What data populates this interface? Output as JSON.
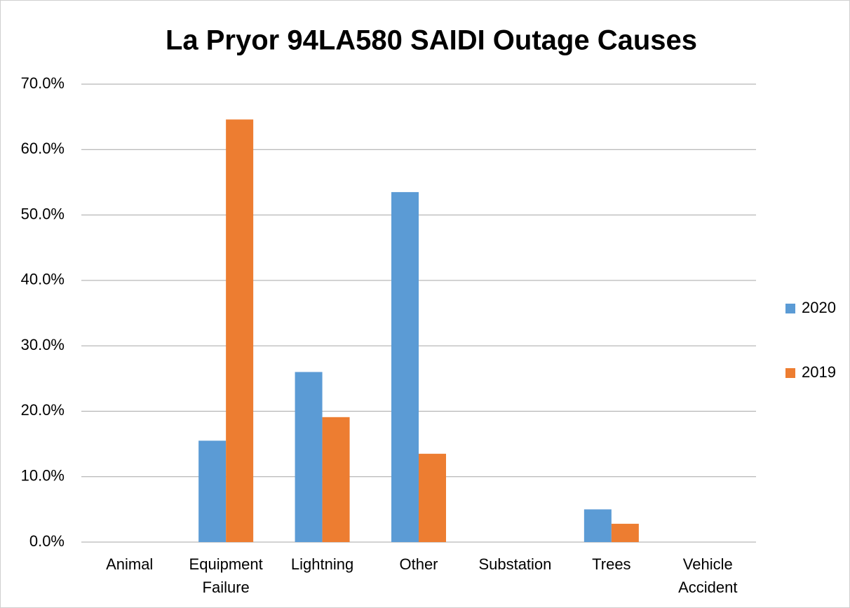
{
  "chart_data": {
    "type": "bar",
    "title": "La Pryor 94LA580 SAIDI Outage Causes",
    "categories": [
      "Animal",
      "Equipment Failure",
      "Lightning",
      "Other",
      "Substation",
      "Trees",
      "Vehicle Accident"
    ],
    "series": [
      {
        "name": "2020",
        "color": "#5b9bd5",
        "values": [
          0,
          15.5,
          26.0,
          53.5,
          0,
          5.0,
          0
        ]
      },
      {
        "name": "2019",
        "color": "#ed7d31",
        "values": [
          0,
          64.6,
          19.1,
          13.5,
          0,
          2.8,
          0
        ]
      }
    ],
    "ylim": [
      0,
      70
    ],
    "yticks": [
      {
        "value": 0,
        "label": "0.0%"
      },
      {
        "value": 10,
        "label": "10.0%"
      },
      {
        "value": 20,
        "label": "20.0%"
      },
      {
        "value": 30,
        "label": "30.0%"
      },
      {
        "value": 40,
        "label": "40.0%"
      },
      {
        "value": 50,
        "label": "50.0%"
      },
      {
        "value": 60,
        "label": "60.0%"
      },
      {
        "value": 70,
        "label": "70.0%"
      }
    ],
    "grid": true,
    "legend": "right"
  }
}
